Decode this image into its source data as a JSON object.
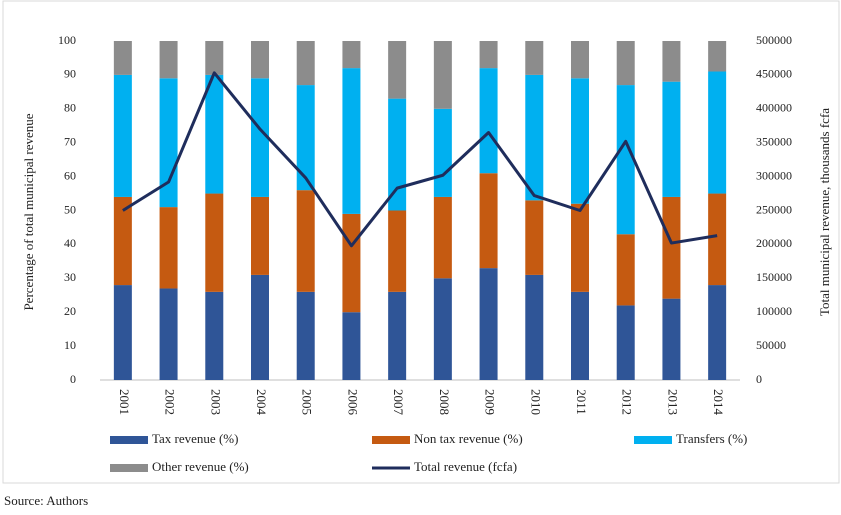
{
  "chart_data": {
    "type": "bar",
    "stacked": true,
    "ylabel": "Percentage of total municipal  revenue",
    "y2label": "Total municipal  revenue, thousands fcfa",
    "source": "Source: Authors",
    "categories": [
      "2001",
      "2002",
      "2003",
      "2004",
      "2005",
      "2006",
      "2007",
      "2008",
      "2009",
      "2010",
      "2011",
      "2012",
      "2013",
      "2014"
    ],
    "series": [
      {
        "name": "Tax revenue (%)",
        "color": "#2f5597",
        "values": [
          28,
          27,
          26,
          31,
          26,
          20,
          26,
          30,
          33,
          31,
          26,
          22,
          24,
          28
        ]
      },
      {
        "name": "Non tax revenue (%)",
        "color": "#c55a11",
        "values": [
          26,
          24,
          29,
          23,
          30,
          29,
          24,
          24,
          28,
          22,
          26,
          21,
          30,
          27
        ]
      },
      {
        "name": "Transfers (%)",
        "color": "#00b0f0",
        "values": [
          36,
          38,
          35,
          35,
          31,
          43,
          33,
          26,
          31,
          37,
          37,
          44,
          34,
          36
        ]
      },
      {
        "name": "Other revenue (%)",
        "color": "#8c8c8c",
        "values": [
          10,
          11,
          10,
          11,
          13,
          8,
          17,
          20,
          8,
          10,
          11,
          13,
          12,
          9
        ]
      },
      {
        "name": "Total revenue (fcfa)",
        "color": "#1f2d5c",
        "type": "line",
        "axis": "y2",
        "values": [
          250000,
          292000,
          453000,
          370000,
          298000,
          198000,
          283000,
          302000,
          365000,
          272000,
          250000,
          352000,
          202000,
          213000
        ]
      }
    ],
    "ylim": [
      0,
      100
    ],
    "yticks": [
      0,
      10,
      20,
      30,
      40,
      50,
      60,
      70,
      80,
      90,
      100
    ],
    "y2lim": [
      0,
      500000
    ],
    "y2ticks": [
      0,
      50000,
      100000,
      150000,
      200000,
      250000,
      300000,
      350000,
      400000,
      450000,
      500000
    ],
    "grid": false
  }
}
